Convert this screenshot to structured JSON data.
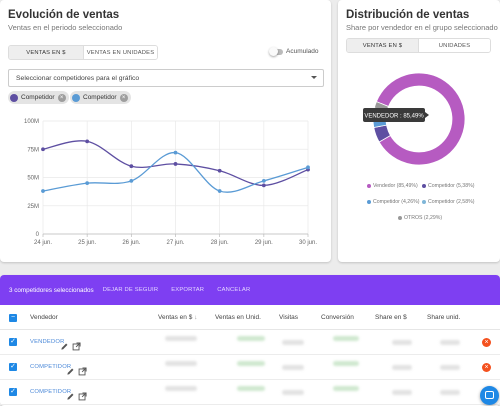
{
  "left_card": {
    "title": "Evolución de ventas",
    "subtitle": "Ventas en el periodo seleccionado",
    "toggle": [
      "VENTAS EN $",
      "VENTAS EN UNIDADES"
    ],
    "accumulated_label": "Acumulado",
    "select_placeholder": "Seleccionar competidores para el gráfico",
    "chips": [
      {
        "label": "Competidor",
        "color": "#5e4fa2"
      },
      {
        "label": "Competidor",
        "color": "#5a9bd5"
      }
    ]
  },
  "right_card": {
    "title": "Distribución de ventas",
    "subtitle": "Share por vendedor en el grupo seleccionado",
    "toggle": [
      "VENTAS EN $",
      "UNIDADES"
    ],
    "tooltip": "VENDEDOR : 85,49%"
  },
  "chart_data": [
    {
      "type": "line",
      "x": [
        "24 jun.",
        "25 jun.",
        "26 jun.",
        "27 jun.",
        "28 jun.",
        "29 jun.",
        "30 jun."
      ],
      "yticks": [
        "0",
        "25M",
        "50M",
        "75M",
        "100M"
      ],
      "ylim": [
        0,
        100
      ],
      "grid": true,
      "series": [
        {
          "color": "#5e4fa2",
          "values": [
            75,
            82,
            60,
            62,
            56,
            43,
            57
          ]
        },
        {
          "color": "#5a9bd5",
          "values": [
            38,
            45,
            47,
            72,
            38,
            47,
            59
          ]
        }
      ]
    },
    {
      "type": "pie",
      "donut": true,
      "slices": [
        {
          "label": "Vendedor",
          "value": 85.49,
          "text": "Vendedor (85,49%)",
          "color": "#b65bc1"
        },
        {
          "label": "Competidor",
          "value": 5.38,
          "text": "Competidor (5,38%)",
          "color": "#5e4fa2"
        },
        {
          "label": "Competidor",
          "value": 4.26,
          "text": "Competidor (4,26%)",
          "color": "#5a9bd5"
        },
        {
          "label": "Competidor",
          "value": 2.58,
          "text": "Competidor (2,58%)",
          "color": "#7fb6d8"
        },
        {
          "label": "OTROS",
          "value": 2.29,
          "text": "OTROS (2,29%)",
          "color": "#999999"
        }
      ]
    }
  ],
  "bottom": {
    "selected_text": "3 competidores seleccionados",
    "actions": [
      "DEJAR DE SEGUIR",
      "EXPORTAR",
      "CANCELAR"
    ],
    "columns": {
      "vendedor": "Vendedor",
      "ventas": "Ventas en $",
      "unid": "Ventas en Unid.",
      "visitas": "Visitas",
      "conversion": "Conversión",
      "share": "Share en $",
      "share_unid": "Share unid."
    },
    "rows": [
      {
        "name": "VENDEDOR"
      },
      {
        "name": "COMPETIDOR"
      },
      {
        "name": "COMPETIDOR"
      }
    ]
  }
}
